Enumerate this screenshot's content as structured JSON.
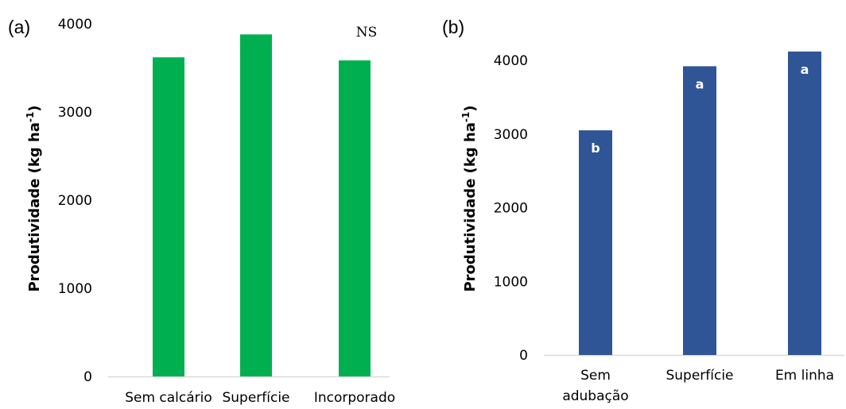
{
  "chart_data": [
    {
      "panel": "(a)",
      "type": "bar",
      "categories": [
        "Sem calcário",
        "Superfície",
        "Incorporado"
      ],
      "values": [
        3620,
        3880,
        3585
      ],
      "ylabel": "Produtividade (kg ha-1)",
      "ylabel_main": "Produtividade (kg ha",
      "ylabel_sup": "-1",
      "ylabel_close": ")",
      "ylim": [
        0,
        4000
      ],
      "yticks": [
        "0",
        "1000",
        "2000",
        "3000",
        "4000"
      ],
      "annotation": "NS",
      "color": "#00b050",
      "grid": false
    },
    {
      "panel": "(b)",
      "type": "bar",
      "categories": [
        "Sem adubação",
        "Superfície",
        "Em linha"
      ],
      "category_lines": [
        [
          "Sem",
          "adubação"
        ],
        [
          "Superfície"
        ],
        [
          "Em linha"
        ]
      ],
      "values": [
        3050,
        3920,
        4120
      ],
      "data_labels": [
        "b",
        "a",
        "a"
      ],
      "ylabel": "Produtividade (kg ha-1)",
      "ylabel_main": "Produtividade (kg ha",
      "ylabel_sup": "-1",
      "ylabel_close": ")",
      "ylim": [
        0,
        4000
      ],
      "yticks": [
        "0",
        "1000",
        "2000",
        "3000",
        "4000"
      ],
      "color": "#2f5597",
      "grid": false
    }
  ]
}
